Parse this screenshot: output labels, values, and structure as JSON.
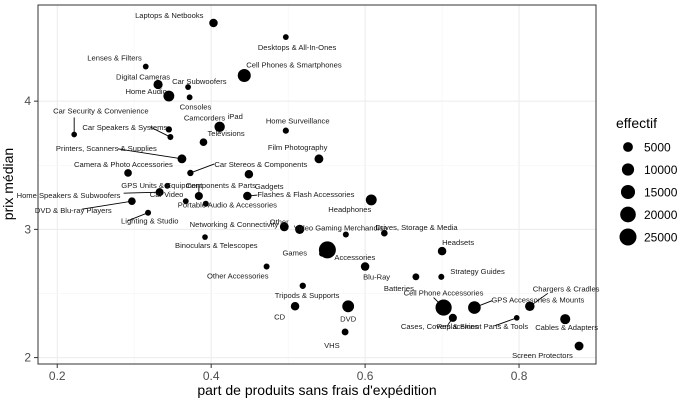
{
  "chart_data": {
    "type": "scatter",
    "xlabel": "part de produits sans frais d'expédition",
    "ylabel": "prix médian",
    "xlim": [
      0.175,
      0.9
    ],
    "ylim": [
      1.95,
      4.75
    ],
    "x_ticks": [
      0.2,
      0.4,
      0.6,
      0.8
    ],
    "y_ticks": [
      2,
      3,
      4
    ],
    "grid": true,
    "legend": {
      "title": "effectif",
      "position": "right",
      "entries": [
        {
          "label": "5000",
          "value": 5000
        },
        {
          "label": "10000",
          "value": 10000
        },
        {
          "label": "15000",
          "value": 15000
        },
        {
          "label": "20000",
          "value": 20000
        },
        {
          "label": "25000",
          "value": 25000
        }
      ]
    },
    "points": [
      {
        "label": "Laptops & Netbooks",
        "x": 0.403,
        "y": 4.61,
        "n": 3000
      },
      {
        "label": "Desktops & All-In-Ones",
        "x": 0.497,
        "y": 4.5,
        "n": 500
      },
      {
        "label": "Lenses & Filters",
        "x": 0.315,
        "y": 4.27,
        "n": 500
      },
      {
        "label": "Cell Phones & Smartphones",
        "x": 0.443,
        "y": 4.2,
        "n": 12000
      },
      {
        "label": "Digital Cameras",
        "x": 0.331,
        "y": 4.13,
        "n": 4000
      },
      {
        "label": "Car Subwoofers",
        "x": 0.37,
        "y": 4.11,
        "n": 500
      },
      {
        "label": "Home Audio",
        "x": 0.345,
        "y": 4.04,
        "n": 7000
      },
      {
        "label": "Consoles",
        "x": 0.372,
        "y": 4.03,
        "n": 500
      },
      {
        "label": "Car Security & Convenience",
        "x": 0.222,
        "y": 3.74,
        "n": 400
      },
      {
        "label": "Car Speakers & Systems",
        "x": 0.347,
        "y": 3.72,
        "n": 600
      },
      {
        "label": "Camcorders",
        "x": 0.345,
        "y": 3.78,
        "n": 800
      },
      {
        "label": "iPad",
        "x": 0.411,
        "y": 3.8,
        "n": 6000
      },
      {
        "label": "Home Surveillance",
        "x": 0.497,
        "y": 3.77,
        "n": 700
      },
      {
        "label": "Televisions",
        "x": 0.39,
        "y": 3.68,
        "n": 2000
      },
      {
        "label": "Printers, Scanners & Supplies",
        "x": 0.362,
        "y": 3.55,
        "n": 3500
      },
      {
        "label": "Film Photography",
        "x": 0.54,
        "y": 3.55,
        "n": 3500
      },
      {
        "label": "Camera & Photo Accessories",
        "x": 0.292,
        "y": 3.44,
        "n": 2000
      },
      {
        "label": "Car Stereos & Components",
        "x": 0.373,
        "y": 3.44,
        "n": 800
      },
      {
        "label": "Gadgets",
        "x": 0.449,
        "y": 3.43,
        "n": 3000
      },
      {
        "label": "GPS Units & Equipment",
        "x": 0.343,
        "y": 3.34,
        "n": 500
      },
      {
        "label": "Components & Parts",
        "x": 0.384,
        "y": 3.26,
        "n": 2500
      },
      {
        "label": "Flashes & Flash Accessories",
        "x": 0.447,
        "y": 3.26,
        "n": 3000
      },
      {
        "label": "Home Speakers & Subwoofers",
        "x": 0.333,
        "y": 3.29,
        "n": 2500
      },
      {
        "label": "DVD & Blu-ray Players",
        "x": 0.297,
        "y": 3.22,
        "n": 2000
      },
      {
        "label": "Car Video",
        "x": 0.367,
        "y": 3.22,
        "n": 500
      },
      {
        "label": "Portable Audio & Accessories",
        "x": 0.393,
        "y": 3.2,
        "n": 600
      },
      {
        "label": "Headphones",
        "x": 0.608,
        "y": 3.23,
        "n": 7000
      },
      {
        "label": "Lighting & Studio",
        "x": 0.318,
        "y": 3.13,
        "n": 600
      },
      {
        "label": "Networking & Connectivity",
        "x": 0.495,
        "y": 3.02,
        "n": 3500
      },
      {
        "label": "Other",
        "x": 0.515,
        "y": 3.0,
        "n": 4000
      },
      {
        "label": "Drives, Storage & Media",
        "x": 0.625,
        "y": 2.97,
        "n": 1000
      },
      {
        "label": "Binoculars & Telescopes",
        "x": 0.392,
        "y": 2.94,
        "n": 400
      },
      {
        "label": "Video Gaming Merchandise",
        "x": 0.575,
        "y": 2.96,
        "n": 600
      },
      {
        "label": "Accessories",
        "x": 0.551,
        "y": 2.84,
        "n": 25000
      },
      {
        "label": "Games",
        "x": 0.544,
        "y": 2.81,
        "n": 500
      },
      {
        "label": "Headsets",
        "x": 0.7,
        "y": 2.83,
        "n": 3000
      },
      {
        "label": "Other Accessories",
        "x": 0.472,
        "y": 2.71,
        "n": 600
      },
      {
        "label": "Blu-Ray",
        "x": 0.6,
        "y": 2.71,
        "n": 3000
      },
      {
        "label": "Strategy Guides",
        "x": 0.699,
        "y": 2.63,
        "n": 600
      },
      {
        "label": "Batteries",
        "x": 0.666,
        "y": 2.63,
        "n": 1200
      },
      {
        "label": "Tripods & Supports",
        "x": 0.519,
        "y": 2.56,
        "n": 800
      },
      {
        "label": "Chargers & Cradles",
        "x": 0.814,
        "y": 2.4,
        "n": 4500
      },
      {
        "label": "Cell Phone Accessories",
        "x": 0.702,
        "y": 2.39,
        "n": 22000
      },
      {
        "label": "GPS Accessories & Mounts",
        "x": 0.742,
        "y": 2.39,
        "n": 11000
      },
      {
        "label": "CD",
        "x": 0.509,
        "y": 2.4,
        "n": 3000
      },
      {
        "label": "DVD",
        "x": 0.578,
        "y": 2.4,
        "n": 9000
      },
      {
        "label": "Replacement Parts & Tools",
        "x": 0.797,
        "y": 2.31,
        "n": 400
      },
      {
        "label": "Cases, Covers & Skins",
        "x": 0.714,
        "y": 2.31,
        "n": 2500
      },
      {
        "label": "Cables & Adapters",
        "x": 0.86,
        "y": 2.3,
        "n": 5500
      },
      {
        "label": "VHS",
        "x": 0.574,
        "y": 2.2,
        "n": 1200
      },
      {
        "label": "Screen Protectors",
        "x": 0.878,
        "y": 2.09,
        "n": 3500
      }
    ]
  }
}
